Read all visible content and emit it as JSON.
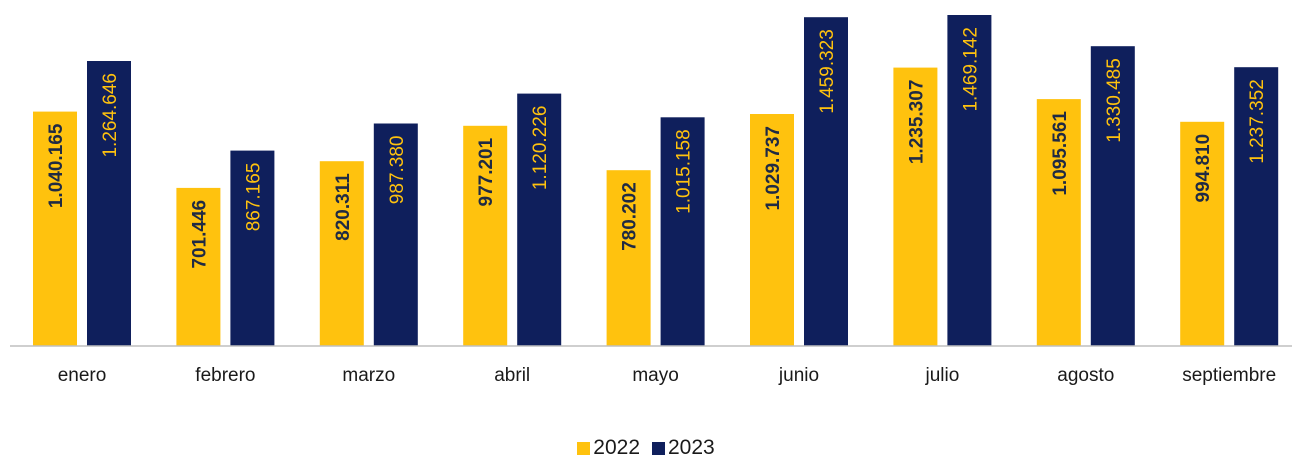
{
  "chart_data": {
    "type": "bar",
    "categories": [
      "enero",
      "febrero",
      "marzo",
      "abril",
      "mayo",
      "junio",
      "julio",
      "agosto",
      "septiembre"
    ],
    "series": [
      {
        "name": "2022",
        "color": "#FFC20E",
        "label_color": "#1f2a44",
        "values": [
          1040165,
          701446,
          820311,
          977201,
          780202,
          1029737,
          1235307,
          1095561,
          994810
        ],
        "labels": [
          "1.040.165",
          "701.446",
          "820.311",
          "977.201",
          "780.202",
          "1.029.737",
          "1.235.307",
          "1.095.561",
          "994.810"
        ]
      },
      {
        "name": "2023",
        "color": "#0F1F5C",
        "label_color": "#FFC20E",
        "values": [
          1264646,
          867165,
          987380,
          1120226,
          1015158,
          1459323,
          1469142,
          1330485,
          1237352
        ],
        "labels": [
          "1.264.646",
          "867.165",
          "987.380",
          "1.120.226",
          "1.015.158",
          "1.459.323",
          "1.469.142",
          "1.330.485",
          "1.237.352"
        ]
      }
    ],
    "ylim": [
      0,
      1500000
    ],
    "data_labels": "inside-rotated",
    "grid": false,
    "legend_position": "bottom"
  },
  "legend": {
    "items": [
      {
        "label": "2022",
        "color": "#FFC20E"
      },
      {
        "label": "2023",
        "color": "#0F1F5C"
      }
    ]
  }
}
